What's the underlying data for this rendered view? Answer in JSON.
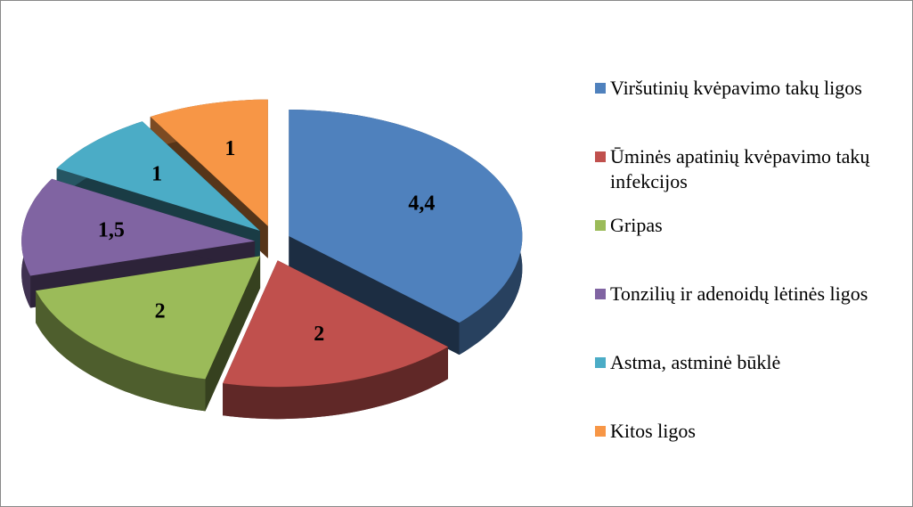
{
  "chart_data": {
    "type": "pie",
    "categories": [
      "Viršutinių kvėpavimo takų ligos",
      "Ūminės apatinių kvėpavimo takų infekcijos",
      "Gripas",
      "Tonzilių ir adenoidų lėtinės ligos",
      "Astma, astminė būklė",
      "Kitos ligos"
    ],
    "values": [
      4.4,
      2,
      2,
      1.5,
      1,
      1
    ],
    "value_labels": [
      "4,4",
      "2",
      "2",
      "1,5",
      "1",
      "1"
    ],
    "colors": [
      "#4f81bd",
      "#c0504d",
      "#9bbb59",
      "#8064a2",
      "#4bacc6",
      "#f79646"
    ],
    "legend": "right"
  }
}
